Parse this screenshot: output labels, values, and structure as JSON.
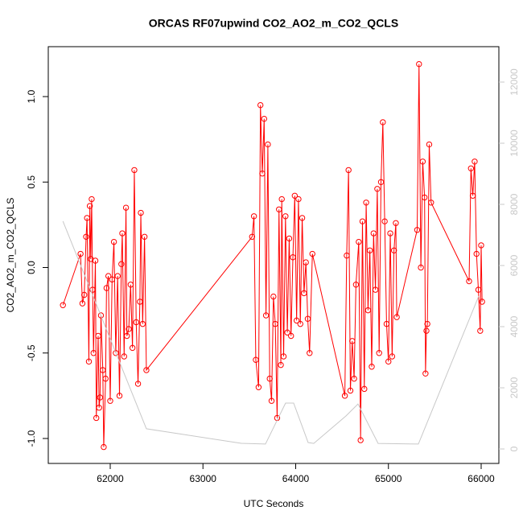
{
  "chart_data": {
    "type": "line",
    "title": "ORCAS RF07upwind CO2_AO2_m_CO2_QCLS",
    "x_label": "UTC Seconds",
    "y_label": "CO2_AO2_m_CO2_QCLS",
    "xlim": [
      61332,
      66191
    ],
    "ylim": [
      -1.146,
      1.292
    ],
    "y2lim": [
      -474,
      13158
    ],
    "xticks": [
      62000,
      63000,
      64000,
      65000,
      66000
    ],
    "yticks": [
      {
        "value": -1,
        "label": "-1.0"
      },
      {
        "value": -0.5,
        "label": "-0.5"
      },
      {
        "value": 0,
        "label": "0.0"
      },
      {
        "value": 0.5,
        "label": "0.5"
      },
      {
        "value": 1,
        "label": "1.0"
      }
    ],
    "y2ticks": [
      0,
      2000,
      4000,
      6000,
      8000,
      10000,
      12000
    ],
    "series": [
      {
        "color": "#ff0000",
        "markers": true,
        "x": [
          61490,
          61680,
          61700,
          61720,
          61740,
          61750,
          61770,
          61780,
          61790,
          61800,
          61810,
          61820,
          61840,
          61850,
          61870,
          61880,
          61890,
          61900,
          61920,
          61930,
          61950,
          61960,
          61980,
          62000,
          62020,
          62040,
          62060,
          62080,
          62100,
          62120,
          62130,
          62150,
          62170,
          62180,
          62200,
          62220,
          62240,
          62260,
          62280,
          62300,
          62320,
          62330,
          62350,
          62370,
          62390,
          63530,
          63550,
          63570,
          63600,
          63620,
          63640,
          63660,
          63680,
          63700,
          63720,
          63740,
          63760,
          63780,
          63800,
          63820,
          63840,
          63850,
          63870,
          63890,
          63910,
          63930,
          63950,
          63970,
          63990,
          64010,
          64030,
          64050,
          64070,
          64090,
          64110,
          64130,
          64150,
          64180,
          64530,
          64550,
          64570,
          64590,
          64610,
          64630,
          64650,
          64680,
          64700,
          64720,
          64740,
          64760,
          64780,
          64800,
          64820,
          64840,
          64860,
          64880,
          64900,
          64920,
          64940,
          64960,
          64980,
          65000,
          65020,
          65040,
          65060,
          65080,
          65090,
          65310,
          65330,
          65350,
          65370,
          65390,
          65400,
          65410,
          65420,
          65440,
          65460,
          65870,
          65890,
          65910,
          65930,
          65950,
          65970,
          65990,
          66000,
          66010
        ],
        "values": [
          -0.22,
          0.08,
          -0.21,
          -0.16,
          0.18,
          0.29,
          -0.55,
          0.36,
          0.05,
          0.4,
          -0.13,
          -0.5,
          0.04,
          -0.88,
          -0.4,
          -0.82,
          -0.76,
          -0.28,
          -0.6,
          -1.05,
          -0.65,
          -0.12,
          -0.05,
          -0.78,
          -0.07,
          0.15,
          -0.5,
          -0.05,
          -0.75,
          0.02,
          0.2,
          -0.52,
          0.35,
          -0.4,
          -0.36,
          -0.1,
          -0.47,
          0.57,
          -0.32,
          -0.68,
          -0.2,
          0.32,
          -0.33,
          0.18,
          -0.6,
          0.18,
          0.3,
          -0.54,
          -0.7,
          0.95,
          0.55,
          0.87,
          -0.28,
          0.72,
          -0.65,
          -0.78,
          -0.17,
          -0.33,
          -0.88,
          0.34,
          -0.57,
          0.4,
          -0.52,
          0.3,
          -0.38,
          0.17,
          -0.4,
          0.06,
          0.42,
          -0.31,
          0.4,
          -0.33,
          0.29,
          -0.15,
          0.03,
          -0.3,
          -0.5,
          0.08,
          -0.75,
          0.07,
          0.57,
          -0.72,
          -0.43,
          -0.65,
          -0.1,
          0.15,
          -1.01,
          0.27,
          -0.71,
          0.38,
          -0.25,
          0.1,
          -0.58,
          0.2,
          -0.13,
          0.46,
          -0.5,
          0.5,
          0.85,
          0.27,
          -0.33,
          -0.55,
          0.2,
          -0.52,
          0.1,
          0.26,
          -0.29,
          0.22,
          1.19,
          0.0,
          0.62,
          0.41,
          -0.62,
          -0.37,
          -0.33,
          0.72,
          0.38,
          -0.08,
          0.58,
          0.42,
          0.62,
          0.08,
          -0.13,
          -0.37,
          0.13,
          -0.2
        ]
      },
      {
        "color": "#c8c8c8",
        "axis": "y2",
        "markers": false,
        "x": [
          61490,
          62390,
          63414,
          63674,
          63891,
          63978,
          64134,
          64195,
          64542,
          64672,
          64889,
          65323,
          65974
        ],
        "values": [
          7450,
          660,
          184,
          160,
          1500,
          1500,
          210,
          180,
          1080,
          1470,
          180,
          160,
          5000
        ]
      }
    ]
  }
}
